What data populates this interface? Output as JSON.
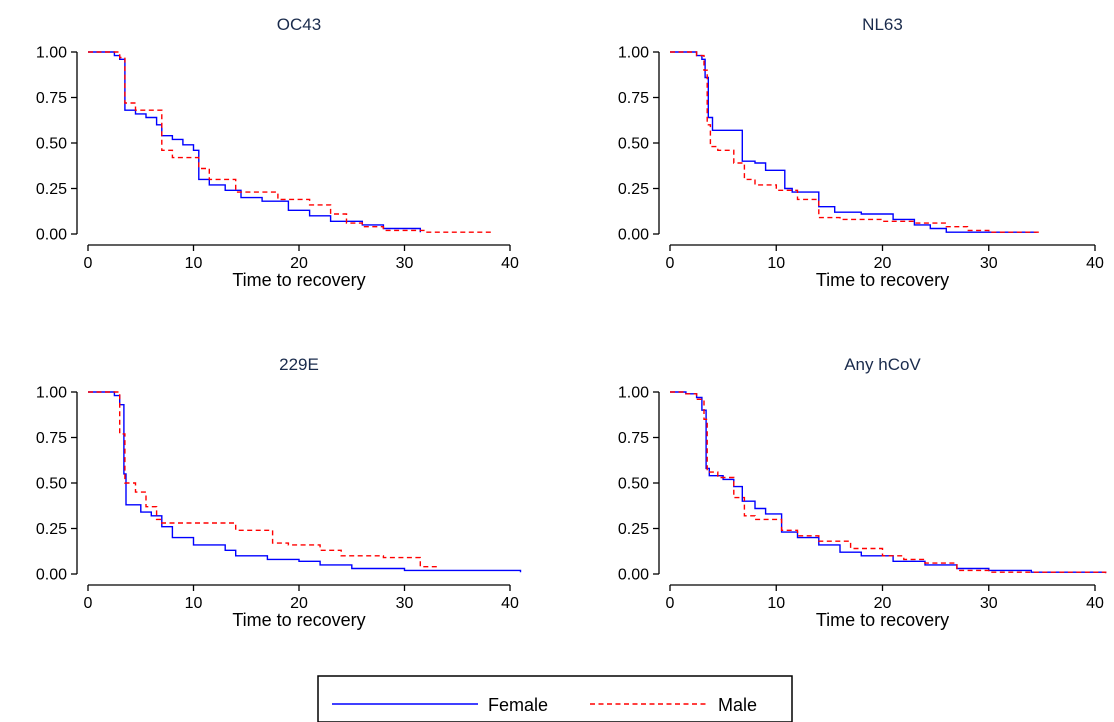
{
  "figure": {
    "legend": {
      "placement": "bottom-center",
      "entries": [
        {
          "label": "Female",
          "color": "#0000ff",
          "style": "solid"
        },
        {
          "label": "Male",
          "color": "#ff0000",
          "style": "dashed"
        }
      ]
    }
  },
  "chart_data": [
    {
      "type": "line",
      "title": "OC43",
      "xlabel": "Time to recovery",
      "ylabel": "",
      "xlim": [
        0,
        40
      ],
      "ylim": [
        0,
        1
      ],
      "xticks": [
        "0",
        "10",
        "20",
        "30",
        "40"
      ],
      "yticks": [
        "0.00",
        "0.25",
        "0.50",
        "0.75",
        "1.00"
      ],
      "grid": false,
      "series": [
        {
          "name": "Female",
          "color": "#0000ff",
          "style": "solid",
          "x": [
            0,
            2.5,
            3.0,
            3.5,
            4.5,
            5.5,
            6.5,
            7.0,
            8.0,
            9.0,
            10.0,
            10.5,
            11.5,
            13.0,
            14.5,
            16.5,
            19.0,
            21.0,
            23.0,
            26.0,
            28.0,
            31.5
          ],
          "y": [
            1.0,
            0.98,
            0.96,
            0.68,
            0.66,
            0.64,
            0.6,
            0.54,
            0.52,
            0.49,
            0.46,
            0.3,
            0.27,
            0.24,
            0.2,
            0.18,
            0.13,
            0.1,
            0.07,
            0.05,
            0.03,
            0.01
          ]
        },
        {
          "name": "Male",
          "color": "#ff0000",
          "style": "dashed",
          "x": [
            0,
            3.0,
            3.5,
            4.5,
            7.0,
            8.0,
            10.5,
            11.5,
            14.0,
            18.0,
            21.0,
            23.0,
            24.5,
            26.0,
            28.0,
            32.0,
            38.5
          ],
          "y": [
            1.0,
            0.97,
            0.72,
            0.68,
            0.46,
            0.42,
            0.36,
            0.3,
            0.23,
            0.19,
            0.16,
            0.11,
            0.06,
            0.04,
            0.02,
            0.01,
            0.01
          ]
        }
      ]
    },
    {
      "type": "line",
      "title": "NL63",
      "xlabel": "Time to recovery",
      "ylabel": "",
      "xlim": [
        0,
        40
      ],
      "ylim": [
        0,
        1
      ],
      "xticks": [
        "0",
        "10",
        "20",
        "30",
        "40"
      ],
      "yticks": [
        "0.00",
        "0.25",
        "0.50",
        "0.75",
        "1.00"
      ],
      "grid": false,
      "series": [
        {
          "name": "Female",
          "color": "#0000ff",
          "style": "solid",
          "x": [
            0,
            2.5,
            3.0,
            3.3,
            3.6,
            4.0,
            6.8,
            8.0,
            9.0,
            10.8,
            11.5,
            14.0,
            15.5,
            18.0,
            21.0,
            23.0,
            24.5,
            26.0,
            30.0,
            34.5
          ],
          "y": [
            1.0,
            0.98,
            0.96,
            0.86,
            0.64,
            0.57,
            0.4,
            0.39,
            0.35,
            0.25,
            0.23,
            0.15,
            0.12,
            0.11,
            0.08,
            0.05,
            0.03,
            0.01,
            0.01,
            0.01
          ]
        },
        {
          "name": "Male",
          "color": "#ff0000",
          "style": "dashed",
          "x": [
            0,
            2.5,
            3.2,
            3.5,
            3.8,
            4.5,
            6.0,
            7.0,
            8.0,
            10.0,
            12.0,
            14.0,
            16.0,
            20.0,
            23.0,
            26.0,
            28.0,
            30.0,
            35.0
          ],
          "y": [
            1.0,
            0.98,
            0.9,
            0.6,
            0.48,
            0.46,
            0.39,
            0.3,
            0.27,
            0.24,
            0.19,
            0.09,
            0.08,
            0.07,
            0.06,
            0.04,
            0.02,
            0.01,
            0.01
          ]
        }
      ]
    },
    {
      "type": "line",
      "title": "229E",
      "xlabel": "Time to recovery",
      "ylabel": "",
      "xlim": [
        0,
        40
      ],
      "ylim": [
        0,
        1
      ],
      "xticks": [
        "0",
        "10",
        "20",
        "30",
        "40"
      ],
      "yticks": [
        "0.00",
        "0.25",
        "0.50",
        "0.75",
        "1.00"
      ],
      "grid": false,
      "series": [
        {
          "name": "Female",
          "color": "#0000ff",
          "style": "solid",
          "x": [
            0,
            2.5,
            3.0,
            3.4,
            3.6,
            5.0,
            6.0,
            7.0,
            8.0,
            10.0,
            13.0,
            14.0,
            17.0,
            20.0,
            22.0,
            24.0,
            25.0,
            30.0,
            41.0
          ],
          "y": [
            1.0,
            0.98,
            0.93,
            0.55,
            0.38,
            0.34,
            0.32,
            0.26,
            0.2,
            0.16,
            0.13,
            0.1,
            0.08,
            0.07,
            0.05,
            0.05,
            0.03,
            0.02,
            0.01
          ]
        },
        {
          "name": "Male",
          "color": "#ff0000",
          "style": "dashed",
          "x": [
            0,
            3.0,
            3.5,
            4.5,
            5.5,
            6.5,
            7.0,
            14.0,
            17.5,
            19.0,
            22.0,
            24.0,
            28.0,
            31.5,
            33.0
          ],
          "y": [
            1.0,
            0.77,
            0.5,
            0.45,
            0.37,
            0.3,
            0.28,
            0.24,
            0.17,
            0.16,
            0.13,
            0.1,
            0.09,
            0.04,
            0.02
          ]
        }
      ]
    },
    {
      "type": "line",
      "title": "Any hCoV",
      "xlabel": "Time to recovery",
      "ylabel": "",
      "xlim": [
        0,
        40
      ],
      "ylim": [
        0,
        1
      ],
      "xticks": [
        "0",
        "10",
        "20",
        "30",
        "40"
      ],
      "yticks": [
        "0.00",
        "0.25",
        "0.50",
        "0.75",
        "1.00"
      ],
      "grid": false,
      "series": [
        {
          "name": "Female",
          "color": "#0000ff",
          "style": "solid",
          "x": [
            0,
            1.5,
            2.5,
            3.0,
            3.4,
            3.7,
            5.0,
            6.0,
            6.8,
            8.0,
            9.0,
            10.5,
            12.0,
            14.0,
            16.0,
            18.0,
            21.0,
            24.0,
            27.0,
            30.0,
            34.0,
            41.0
          ],
          "y": [
            1.0,
            0.99,
            0.97,
            0.9,
            0.58,
            0.54,
            0.52,
            0.48,
            0.4,
            0.36,
            0.33,
            0.23,
            0.2,
            0.16,
            0.12,
            0.1,
            0.07,
            0.05,
            0.03,
            0.02,
            0.01,
            0.005
          ]
        },
        {
          "name": "Male",
          "color": "#ff0000",
          "style": "dashed",
          "x": [
            0,
            1.5,
            2.5,
            3.2,
            3.5,
            4.5,
            6.0,
            7.0,
            8.0,
            10.5,
            12.0,
            14.0,
            17.0,
            20.0,
            22.0,
            24.0,
            27.0,
            30.0,
            41.0
          ],
          "y": [
            1.0,
            0.99,
            0.96,
            0.85,
            0.56,
            0.53,
            0.42,
            0.32,
            0.3,
            0.24,
            0.21,
            0.18,
            0.14,
            0.1,
            0.08,
            0.06,
            0.02,
            0.01,
            0.005
          ]
        }
      ]
    }
  ]
}
